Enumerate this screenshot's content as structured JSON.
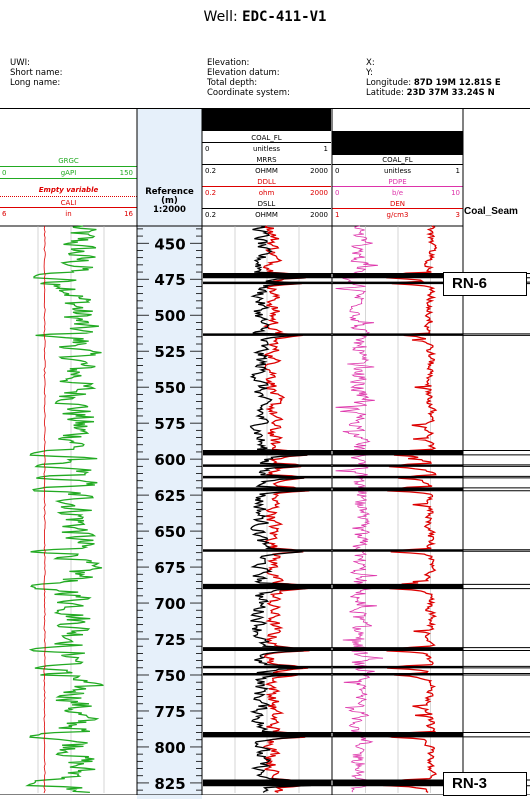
{
  "header": {
    "well_label": "Well:",
    "well_name": "EDC-411-V1",
    "uwi_label": "UWI:",
    "short_name_label": "Short name:",
    "long_name_label": "Long name:",
    "elevation_label": "Elevation:",
    "elevation_datum_label": "Elevation datum:",
    "total_depth_label": "Total depth:",
    "coord_system_label": "Coordinate system:",
    "x_label": "X:",
    "y_label": "Y:",
    "longitude_label": "Longitude:",
    "longitude_value": "87D 19M 12.81S E",
    "latitude_label": "Latitude:",
    "latitude_value": "23D 37M 33.24S N"
  },
  "chart_data": {
    "type": "line",
    "depth_axis": {
      "title_line1": "Reference",
      "title_line2": "(m)",
      "scale": "1:2000",
      "ylim": [
        438,
        832
      ],
      "ticks": [
        450,
        475,
        500,
        525,
        550,
        575,
        600,
        625,
        650,
        675,
        700,
        725,
        750,
        775,
        800,
        825
      ]
    },
    "tracks": [
      {
        "curves": [
          {
            "name": "GRGC",
            "unit": "gAPI",
            "min": "0",
            "max": "150",
            "color": "#22aa22"
          },
          {
            "name": "Empty variable",
            "unit": "",
            "min": "",
            "max": "",
            "color": "#dd0000"
          },
          {
            "name": "CALI",
            "unit": "in",
            "min": "6",
            "max": "16",
            "color": "#dd0000"
          }
        ]
      },
      {
        "curves": [
          {
            "name": "COAL_FL",
            "unit": "unitless",
            "min": "0",
            "max": "1",
            "color": "#000000"
          },
          {
            "name": "MRRS",
            "unit": "OHMM",
            "min": "0.2",
            "max": "2000",
            "color": "#000000"
          },
          {
            "name": "DDLL",
            "unit": "ohm",
            "min": "0.2",
            "max": "2000",
            "color": "#dd0000"
          },
          {
            "name": "DSLL",
            "unit": "OHMM",
            "min": "0.2",
            "max": "2000",
            "color": "#000000"
          }
        ]
      },
      {
        "curves": [
          {
            "name": "COAL_FL",
            "unit": "unitless",
            "min": "0",
            "max": "1",
            "color": "#000000"
          },
          {
            "name": "PDPE",
            "unit": "b/e",
            "min": "0",
            "max": "10",
            "color": "#dd33aa"
          },
          {
            "name": "DEN",
            "unit": "g/cm3",
            "min": "1",
            "max": "3",
            "color": "#dd0000"
          }
        ]
      },
      {
        "curves": [
          {
            "name": "Coal_Seam",
            "unit": "",
            "min": "",
            "max": "",
            "color": "#000000"
          }
        ]
      }
    ],
    "coal_seams_depth_m": [
      [
        471,
        474
      ],
      [
        477,
        478
      ],
      [
        513,
        514
      ],
      [
        594,
        597
      ],
      [
        604,
        605
      ],
      [
        612,
        613
      ],
      [
        620,
        622
      ],
      [
        663,
        664
      ],
      [
        687,
        690
      ],
      [
        731,
        733
      ],
      [
        744,
        745
      ],
      [
        749,
        750
      ],
      [
        790,
        793
      ],
      [
        823,
        827
      ]
    ],
    "annotations": [
      {
        "label": "RN-6",
        "depth_m": 478
      },
      {
        "label": "RN-3",
        "depth_m": 826
      }
    ]
  }
}
